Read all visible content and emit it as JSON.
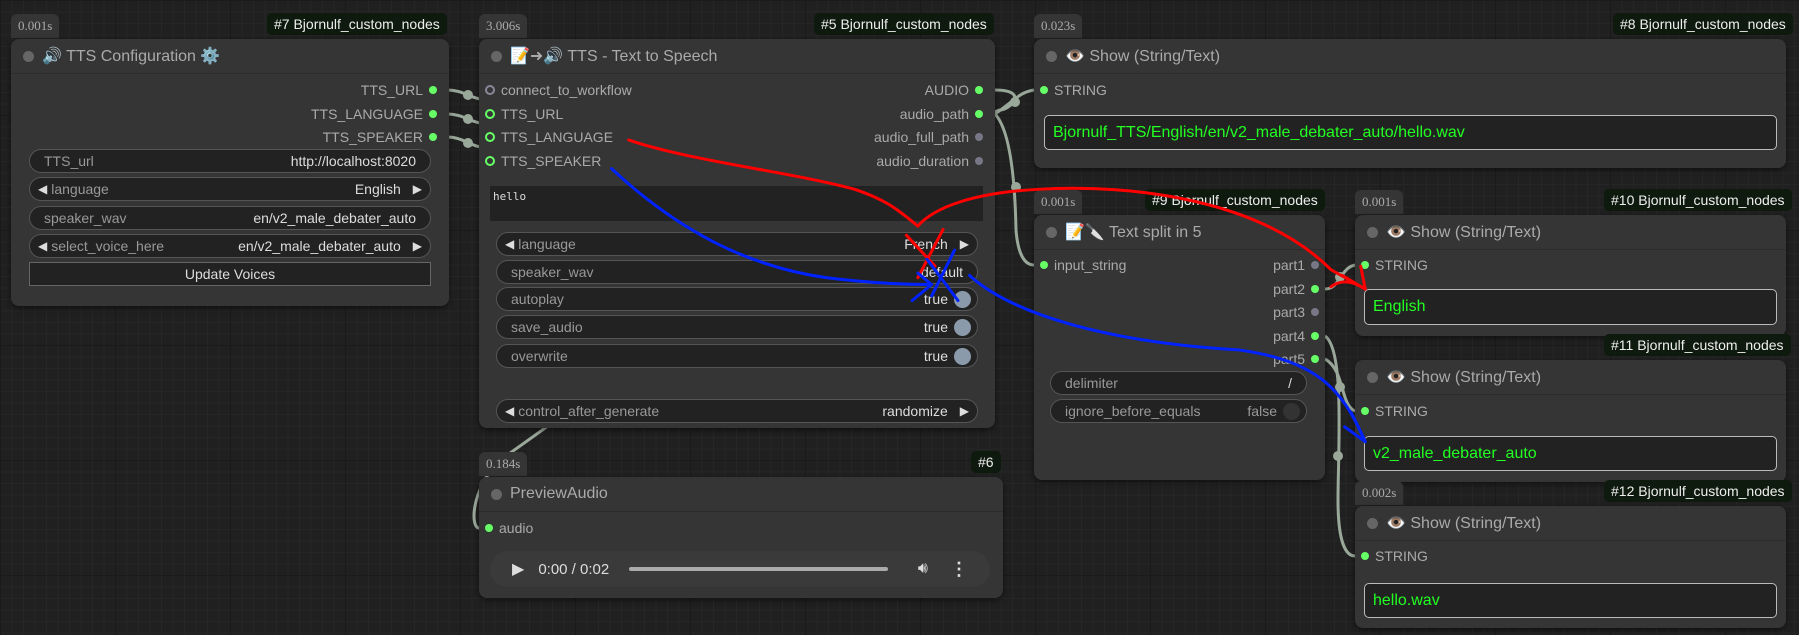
{
  "nodes": {
    "n7": {
      "timer": "0.001s",
      "badge": "#7 Bjornulf_custom_nodes",
      "title": "🔊 TTS Configuration ⚙️",
      "outputs": [
        "TTS_URL",
        "TTS_LANGUAGE",
        "TTS_SPEAKER"
      ],
      "widgets": [
        {
          "label": "TTS_url",
          "value": "http://localhost:8020"
        },
        {
          "label": "language",
          "value": "English"
        },
        {
          "label": "speaker_wav",
          "value": "en/v2_male_debater_auto"
        },
        {
          "label": "select_voice_here",
          "value": "en/v2_male_debater_auto"
        }
      ],
      "button": "Update Voices"
    },
    "n5": {
      "timer": "3.006s",
      "badge": "#5 Bjornulf_custom_nodes",
      "title": "📝➜🔊 TTS - Text to Speech",
      "inputs": [
        "connect_to_workflow",
        "TTS_URL",
        "TTS_LANGUAGE",
        "TTS_SPEAKER"
      ],
      "outputs": [
        "AUDIO",
        "audio_path",
        "audio_full_path",
        "audio_duration"
      ],
      "text": "hello",
      "widgets": [
        {
          "label": "language",
          "value": "French"
        },
        {
          "label": "speaker_wav",
          "value": "default"
        },
        {
          "label": "autoplay",
          "value": "true"
        },
        {
          "label": "save_audio",
          "value": "true"
        },
        {
          "label": "overwrite",
          "value": "true"
        },
        {
          "label": "control_after_generate",
          "value": "randomize"
        }
      ]
    },
    "n6": {
      "timer": "0.184s",
      "badge": "#6",
      "title": "PreviewAudio",
      "input": "audio",
      "time": "0:00 / 0:02",
      "progress": 0
    },
    "n8": {
      "timer": "0.023s",
      "badge": "#8 Bjornulf_custom_nodes",
      "title": "👁️ Show (String/Text)",
      "input": "STRING",
      "value": "Bjornulf_TTS/English/en/v2_male_debater_auto/hello.wav"
    },
    "n9": {
      "timer": "0.001s",
      "badge": "#9 Bjornulf_custom_nodes",
      "title": "📝🔪 Text split in 5",
      "input": "input_string",
      "outputs": [
        "part1",
        "part2",
        "part3",
        "part4",
        "part5"
      ],
      "widgets": [
        {
          "label": "delimiter",
          "value": "/"
        },
        {
          "label": "ignore_before_equals",
          "value": "false"
        }
      ]
    },
    "n10": {
      "timer": "0.001s",
      "badge": "#10 Bjornulf_custom_nodes",
      "title": "👁️ Show (String/Text)",
      "input": "STRING",
      "value": "English"
    },
    "n11": {
      "badge": "#11 Bjornulf_custom_nodes",
      "title": "👁️ Show (String/Text)",
      "input": "STRING",
      "value": "v2_male_debater_auto"
    },
    "n12": {
      "timer": "0.002s",
      "badge": "#12 Bjornulf_custom_nodes",
      "title": "👁️ Show (String/Text)",
      "input": "STRING",
      "value": "hello.wav"
    }
  },
  "colors": {
    "link": "#9aa89a",
    "annotation_red": "#ff0000",
    "annotation_blue": "#0022ff",
    "output_text": "#22ff22",
    "slot": "#66ff66"
  }
}
